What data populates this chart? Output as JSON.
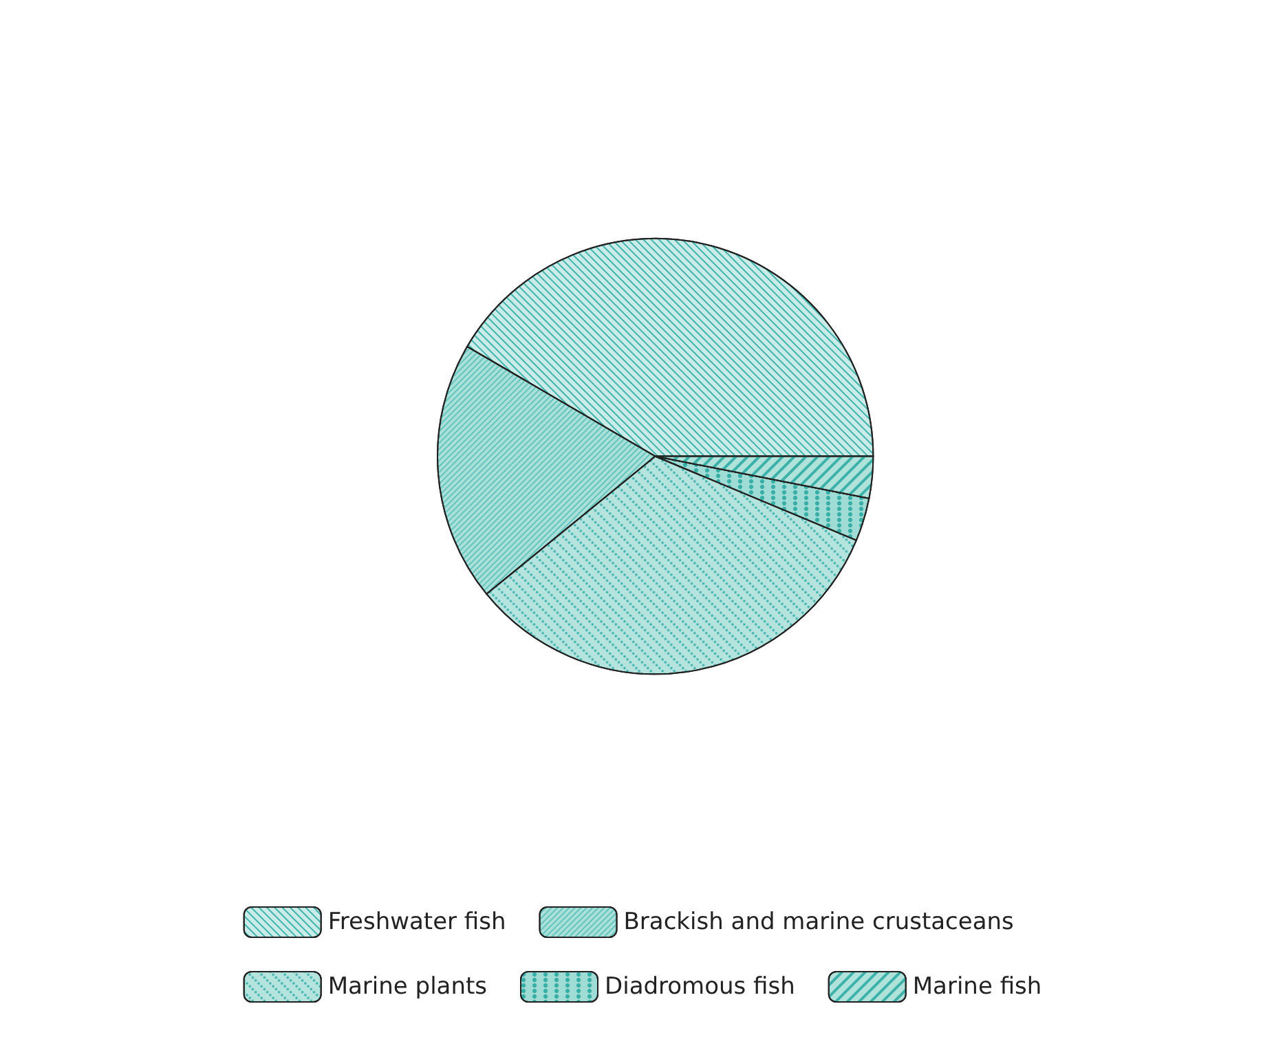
{
  "chart_data": {
    "type": "pie",
    "categories": [
      "Freshwater fish",
      "Brackish and marine crustaceans",
      "Marine plants",
      "Diadromous fish",
      "Marine fish"
    ],
    "values": [
      41.6,
      19.3,
      32.8,
      3.2,
      3.1
    ],
    "colors": [
      "#c9ece8",
      "#a9e0da",
      "#b5e4df",
      "#9fdcd5",
      "#b0e2dc"
    ],
    "legend": "bottom"
  }
}
